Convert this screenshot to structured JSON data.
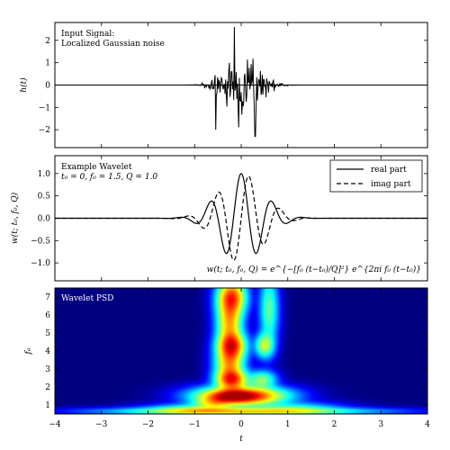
{
  "colors": {
    "axes_bg": "#ffffff",
    "line": "#000000",
    "colormap": [
      "#00007f",
      "#0000ff",
      "#007fff",
      "#00ffff",
      "#7fff7f",
      "#ffff00",
      "#ff7f00",
      "#ff0000",
      "#7f0000"
    ]
  },
  "chart_data": [
    {
      "type": "line",
      "panel": "top",
      "title": "",
      "annotation": [
        "Input Signal:",
        "Localized Gaussian noise"
      ],
      "ylabel": "h(t)",
      "xlim": [
        -4,
        4
      ],
      "ylim": [
        -2.8,
        2.8
      ],
      "yticks": [
        -2,
        -1,
        0,
        1,
        2
      ],
      "yticklabels": [
        "−2",
        "−1",
        "0",
        "1",
        "2"
      ],
      "signal": {
        "description": "localized gaussian noise",
        "center": 0.0,
        "width": 0.5,
        "approx_peak": 2.6,
        "approx_trough": -2.3
      },
      "grid": false,
      "legend": "none"
    },
    {
      "type": "line",
      "panel": "middle",
      "title": "",
      "annotation": [
        "Example Wavelet",
        "t₀ = 0, f₀ = 1.5, Q = 1.0"
      ],
      "formula": "w(t; t₀, f₀, Q) = e^{−[f₀ (t−t₀)/Q]²} e^{2πi f₀ (t−t₀)}",
      "ylabel": "w(t; t₀, f₀, Q)",
      "xlim": [
        -4,
        4
      ],
      "ylim": [
        -1.4,
        1.4
      ],
      "yticks": [
        -1.0,
        -0.5,
        0.0,
        0.5,
        1.0
      ],
      "yticklabels": [
        "−1.0",
        "−0.5",
        "0.0",
        "0.5",
        "1.0"
      ],
      "params": {
        "t0": 0,
        "f0": 1.5,
        "Q": 1.0
      },
      "series": [
        {
          "name": "real part",
          "dash": "solid"
        },
        {
          "name": "imag part",
          "dash": "dashed"
        }
      ],
      "grid": false,
      "legend": "top-right"
    },
    {
      "type": "heatmap",
      "panel": "bottom",
      "title": "",
      "annotation": [
        "Wavelet PSD"
      ],
      "xlabel": "t",
      "ylabel": "f₀",
      "xlim": [
        -4,
        4
      ],
      "ylim": [
        0.5,
        7.5
      ],
      "xticks": [
        -4,
        -3,
        -2,
        -1,
        0,
        1,
        2,
        3,
        4
      ],
      "xticklabels": [
        "−4",
        "−3",
        "−2",
        "−1",
        "0",
        "1",
        "2",
        "3",
        "4"
      ],
      "yticks": [
        1,
        2,
        3,
        4,
        5,
        6,
        7
      ],
      "yticklabels": [
        "1",
        "2",
        "3",
        "4",
        "5",
        "6",
        "7"
      ],
      "blobs": [
        {
          "t": 0.0,
          "f": 1.5,
          "st": 0.55,
          "sf": 0.3,
          "a": 1.0
        },
        {
          "t": -0.2,
          "f": 1.45,
          "st": 0.3,
          "sf": 0.2,
          "a": 0.35
        },
        {
          "t": -0.2,
          "f": 2.4,
          "st": 0.2,
          "sf": 0.35,
          "a": 0.75
        },
        {
          "t": -0.25,
          "f": 3.3,
          "st": 0.18,
          "sf": 0.6,
          "a": 0.55
        },
        {
          "t": -0.2,
          "f": 4.3,
          "st": 0.18,
          "sf": 0.45,
          "a": 0.7
        },
        {
          "t": -0.25,
          "f": 5.6,
          "st": 0.16,
          "sf": 0.9,
          "a": 0.55
        },
        {
          "t": -0.2,
          "f": 7.0,
          "st": 0.18,
          "sf": 0.6,
          "a": 0.7
        },
        {
          "t": 0.5,
          "f": 4.3,
          "st": 0.12,
          "sf": 0.4,
          "a": 0.35
        },
        {
          "t": 0.45,
          "f": 2.4,
          "st": 0.18,
          "sf": 0.3,
          "a": 0.3
        },
        {
          "t": 0.6,
          "f": 6.3,
          "st": 0.12,
          "sf": 1.2,
          "a": 0.25
        },
        {
          "t": 0.0,
          "f": 0.65,
          "st": 1.6,
          "sf": 0.12,
          "a": 0.45
        },
        {
          "t": -1.0,
          "f": 0.75,
          "st": 0.6,
          "sf": 0.18,
          "a": 0.25
        },
        {
          "t": 1.1,
          "f": 0.8,
          "st": 0.6,
          "sf": 0.2,
          "a": 0.2
        },
        {
          "t": -0.6,
          "f": 1.1,
          "st": 0.25,
          "sf": 0.2,
          "a": 0.3
        }
      ],
      "grid": false,
      "legend": "none"
    }
  ]
}
